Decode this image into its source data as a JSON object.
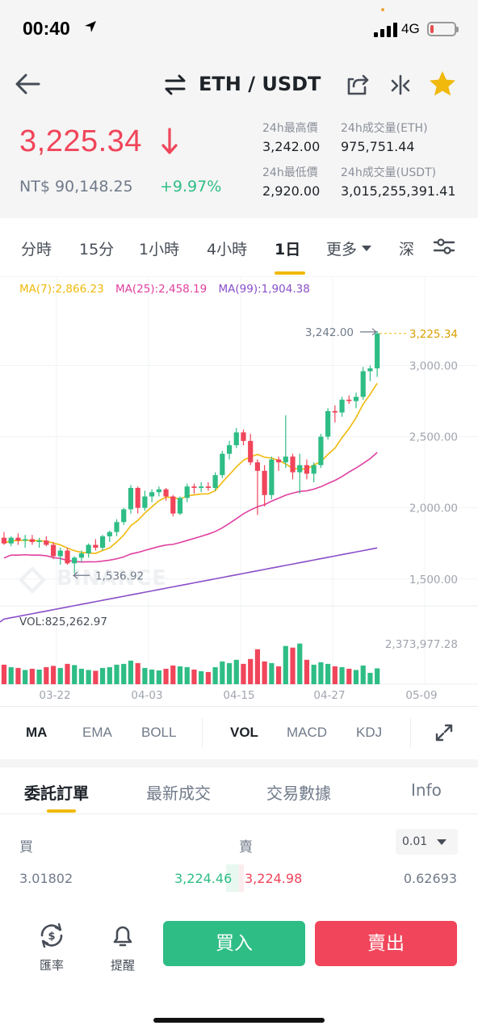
{
  "status_bar": {
    "time": "00:40",
    "network": "4G",
    "battery_level": 0.15,
    "battery_color": "#e84e4e"
  },
  "header": {
    "pair": "ETH / USDT",
    "last_price": "3,225.34",
    "fiat_price": "NT$  90,148.25",
    "change_percent": "+9.97%",
    "stats": {
      "high_label": "24h最高價",
      "high_value": "3,242.00",
      "low_label": "24h最低價",
      "low_value": "2,920.00",
      "vol_base_label": "24h成交量(ETH)",
      "vol_base_value": "975,751.44",
      "vol_quote_label": "24h成交量(USDT)",
      "vol_quote_value": "3,015,255,391.41"
    }
  },
  "timeframes": {
    "items": [
      "分時",
      "15分",
      "1小時",
      "4小時",
      "1日",
      "更多",
      "深"
    ],
    "active": "1日"
  },
  "chart_data": {
    "type": "candlestick",
    "ma_legend": {
      "ma7": "MA(7):2,866.23",
      "ma25": "MA(25):2,458.19",
      "ma99": "MA(99):1,904.38"
    },
    "y_ticks": [
      "3,000.00",
      "2,500.00",
      "2,000.00",
      "1,500.00"
    ],
    "current_price_label": "3,225.34",
    "high_marker": "3,242.00",
    "low_marker": "1,536.92",
    "x_ticks": [
      "03-22",
      "04-03",
      "04-15",
      "04-27",
      "05-09"
    ],
    "vol_label": "VOL:825,262.97",
    "vol_max_label": "2,373,977.28",
    "watermark": "BINANCE",
    "colors": {
      "up": "#2ebd85",
      "down": "#f0455a",
      "ma7": "#f0b90b",
      "ma25": "#e040a0",
      "ma99": "#8a4fc8"
    },
    "candles": [
      {
        "o": 1790,
        "h": 1830,
        "l": 1740,
        "c": 1750,
        "v": 0.48
      },
      {
        "o": 1750,
        "h": 1800,
        "l": 1730,
        "c": 1790,
        "v": 0.42
      },
      {
        "o": 1790,
        "h": 1820,
        "l": 1740,
        "c": 1770,
        "v": 0.4
      },
      {
        "o": 1770,
        "h": 1810,
        "l": 1720,
        "c": 1780,
        "v": 0.35
      },
      {
        "o": 1780,
        "h": 1810,
        "l": 1740,
        "c": 1760,
        "v": 0.38
      },
      {
        "o": 1760,
        "h": 1790,
        "l": 1720,
        "c": 1770,
        "v": 0.36
      },
      {
        "o": 1770,
        "h": 1800,
        "l": 1730,
        "c": 1740,
        "v": 0.42
      },
      {
        "o": 1740,
        "h": 1760,
        "l": 1640,
        "c": 1660,
        "v": 0.45
      },
      {
        "o": 1660,
        "h": 1720,
        "l": 1600,
        "c": 1700,
        "v": 0.4
      },
      {
        "o": 1700,
        "h": 1720,
        "l": 1600,
        "c": 1610,
        "v": 0.5
      },
      {
        "o": 1610,
        "h": 1660,
        "l": 1540,
        "c": 1650,
        "v": 0.47
      },
      {
        "o": 1650,
        "h": 1700,
        "l": 1620,
        "c": 1680,
        "v": 0.38
      },
      {
        "o": 1680,
        "h": 1750,
        "l": 1650,
        "c": 1740,
        "v": 0.35
      },
      {
        "o": 1740,
        "h": 1780,
        "l": 1700,
        "c": 1720,
        "v": 0.33
      },
      {
        "o": 1720,
        "h": 1810,
        "l": 1700,
        "c": 1800,
        "v": 0.4
      },
      {
        "o": 1800,
        "h": 1840,
        "l": 1760,
        "c": 1830,
        "v": 0.42
      },
      {
        "o": 1830,
        "h": 1920,
        "l": 1800,
        "c": 1900,
        "v": 0.48
      },
      {
        "o": 1900,
        "h": 2000,
        "l": 1880,
        "c": 1990,
        "v": 0.5
      },
      {
        "o": 1990,
        "h": 2160,
        "l": 1960,
        "c": 2140,
        "v": 0.58
      },
      {
        "o": 2140,
        "h": 2150,
        "l": 1960,
        "c": 2000,
        "v": 0.52
      },
      {
        "o": 2000,
        "h": 2120,
        "l": 1980,
        "c": 2080,
        "v": 0.4
      },
      {
        "o": 2080,
        "h": 2130,
        "l": 2040,
        "c": 2110,
        "v": 0.36
      },
      {
        "o": 2110,
        "h": 2150,
        "l": 2080,
        "c": 2130,
        "v": 0.34
      },
      {
        "o": 2130,
        "h": 2140,
        "l": 2050,
        "c": 2080,
        "v": 0.38
      },
      {
        "o": 2080,
        "h": 2090,
        "l": 1940,
        "c": 1960,
        "v": 0.46
      },
      {
        "o": 1960,
        "h": 2080,
        "l": 1950,
        "c": 2070,
        "v": 0.44
      },
      {
        "o": 2070,
        "h": 2170,
        "l": 2040,
        "c": 2150,
        "v": 0.42
      },
      {
        "o": 2150,
        "h": 2170,
        "l": 2100,
        "c": 2140,
        "v": 0.36
      },
      {
        "o": 2140,
        "h": 2180,
        "l": 2110,
        "c": 2150,
        "v": 0.32
      },
      {
        "o": 2150,
        "h": 2180,
        "l": 2120,
        "c": 2140,
        "v": 0.3
      },
      {
        "o": 2140,
        "h": 2250,
        "l": 2120,
        "c": 2230,
        "v": 0.42
      },
      {
        "o": 2230,
        "h": 2400,
        "l": 2210,
        "c": 2380,
        "v": 0.56
      },
      {
        "o": 2380,
        "h": 2470,
        "l": 2340,
        "c": 2440,
        "v": 0.52
      },
      {
        "o": 2440,
        "h": 2560,
        "l": 2420,
        "c": 2530,
        "v": 0.6
      },
      {
        "o": 2530,
        "h": 2550,
        "l": 2440,
        "c": 2470,
        "v": 0.5
      },
      {
        "o": 2470,
        "h": 2520,
        "l": 2300,
        "c": 2320,
        "v": 0.62
      },
      {
        "o": 2320,
        "h": 2340,
        "l": 1950,
        "c": 2260,
        "v": 0.86
      },
      {
        "o": 2260,
        "h": 2300,
        "l": 2010,
        "c": 2090,
        "v": 0.56
      },
      {
        "o": 2090,
        "h": 2360,
        "l": 2060,
        "c": 2340,
        "v": 0.52
      },
      {
        "o": 2340,
        "h": 2360,
        "l": 2260,
        "c": 2320,
        "v": 0.44
      },
      {
        "o": 2320,
        "h": 2650,
        "l": 2280,
        "c": 2360,
        "v": 0.94
      },
      {
        "o": 2360,
        "h": 2380,
        "l": 2200,
        "c": 2250,
        "v": 0.9
      },
      {
        "o": 2250,
        "h": 2380,
        "l": 2100,
        "c": 2300,
        "v": 1.0
      },
      {
        "o": 2300,
        "h": 2340,
        "l": 2200,
        "c": 2240,
        "v": 0.6
      },
      {
        "o": 2240,
        "h": 2320,
        "l": 2180,
        "c": 2300,
        "v": 0.48
      },
      {
        "o": 2300,
        "h": 2520,
        "l": 2280,
        "c": 2500,
        "v": 0.54
      },
      {
        "o": 2500,
        "h": 2700,
        "l": 2480,
        "c": 2680,
        "v": 0.5
      },
      {
        "o": 2680,
        "h": 2720,
        "l": 2600,
        "c": 2670,
        "v": 0.44
      },
      {
        "o": 2670,
        "h": 2780,
        "l": 2640,
        "c": 2760,
        "v": 0.42
      },
      {
        "o": 2760,
        "h": 2790,
        "l": 2730,
        "c": 2750,
        "v": 0.38
      },
      {
        "o": 2750,
        "h": 2810,
        "l": 2700,
        "c": 2780,
        "v": 0.35
      },
      {
        "o": 2780,
        "h": 2990,
        "l": 2760,
        "c": 2960,
        "v": 0.46
      },
      {
        "o": 2960,
        "h": 3000,
        "l": 2890,
        "c": 2980,
        "v": 0.28
      },
      {
        "o": 2980,
        "h": 3242,
        "l": 2920,
        "c": 3225.34,
        "v": 0.39
      }
    ]
  },
  "indicators": {
    "main": [
      "MA",
      "EMA",
      "BOLL"
    ],
    "sub": [
      "VOL",
      "MACD",
      "KDJ"
    ],
    "active_main": "MA",
    "active_sub": "VOL"
  },
  "order_tabs": {
    "items": [
      "委託訂單",
      "最新成交",
      "交易數據",
      "Info"
    ],
    "active": "委託訂單"
  },
  "order_book": {
    "buy_label": "買",
    "sell_label": "賣",
    "precision": "0.01",
    "bid_qty": "3.01802",
    "bid_price": "3,224.46",
    "ask_price": "3,224.98",
    "ask_qty": "0.62693"
  },
  "bottom_bar": {
    "rate_label": "匯率",
    "alert_label": "提醒",
    "buy_button": "買入",
    "sell_button": "賣出"
  }
}
